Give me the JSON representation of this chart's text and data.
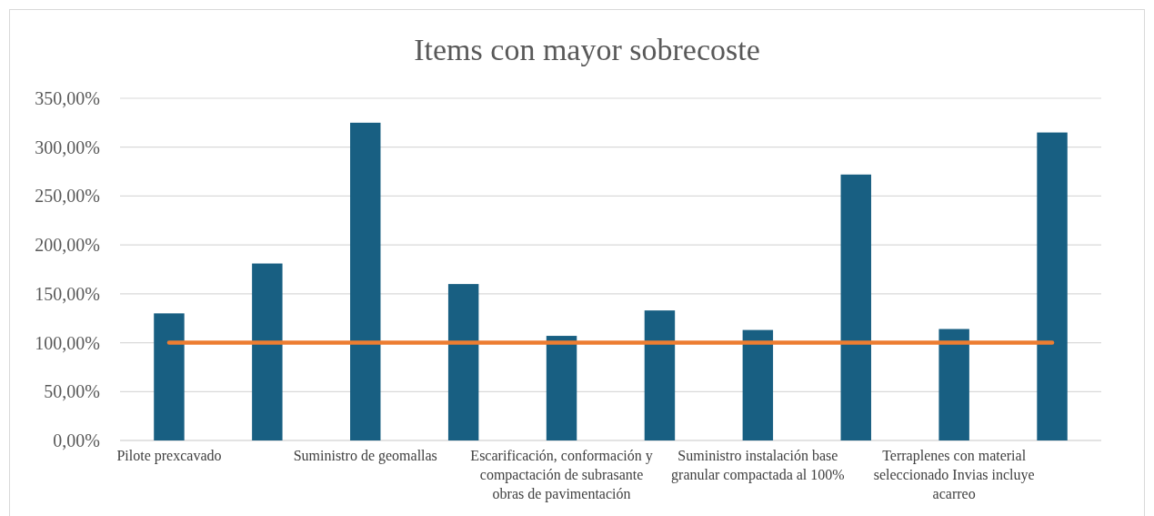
{
  "chart_data": {
    "type": "bar",
    "title": "Items con mayor sobrecoste",
    "categories": [
      "Pilote prexcavado",
      null,
      "Suministro de geomallas",
      null,
      "Escarificación, conformación y compactación de subrasante obras de pavimentación",
      null,
      "Suministro instalación base granular compactada al 100%",
      null,
      "Terraplenes con material seleccionado Invias incluye acarreo",
      null
    ],
    "series": [
      {
        "color": "#185f82",
        "values": [
          130,
          181,
          325,
          160,
          107,
          133,
          113,
          272,
          114,
          315
        ]
      },
      {
        "type": "line",
        "color": "#ed7d31",
        "values": [
          100,
          100,
          100,
          100,
          100,
          100,
          100,
          100,
          100,
          100
        ]
      }
    ],
    "ylim": [
      0,
      350
    ],
    "yticks": [
      {
        "value": 0,
        "label": "0,00%"
      },
      {
        "value": 50,
        "label": "50,00%"
      },
      {
        "value": 100,
        "label": "100,00%"
      },
      {
        "value": 150,
        "label": "150,00%"
      },
      {
        "value": 200,
        "label": "200,00%"
      },
      {
        "value": 250,
        "label": "250,00%"
      },
      {
        "value": 300,
        "label": "300,00%"
      },
      {
        "value": 350,
        "label": "350,00%"
      }
    ],
    "grid": "y"
  }
}
